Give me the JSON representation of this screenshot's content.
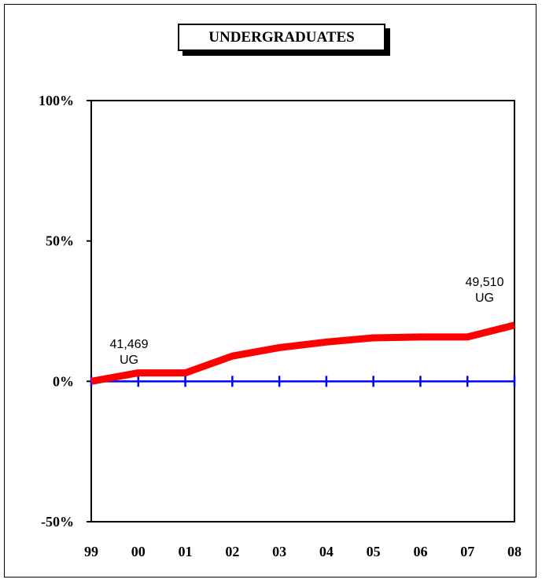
{
  "chart_data": {
    "type": "line",
    "title": "UNDERGRADUATES",
    "categories": [
      "99",
      "00",
      "01",
      "02",
      "03",
      "04",
      "05",
      "06",
      "07",
      "08"
    ],
    "series": [
      {
        "values": [
          0,
          3,
          3,
          9,
          12,
          14,
          15.5,
          15.8,
          15.8,
          20
        ],
        "color": "#ff0000"
      },
      {
        "values": [
          0,
          0,
          0,
          0,
          0,
          0,
          0,
          0,
          0,
          0
        ],
        "color": "#0000ff"
      }
    ],
    "ylim": [
      -50,
      100
    ],
    "yticks": [
      -50,
      0,
      50,
      100
    ],
    "ytick_labels": [
      "-50%",
      "0%",
      "50%",
      "100%"
    ],
    "annotations": [
      {
        "category": "99",
        "lines": [
          "41,469",
          "UG"
        ]
      },
      {
        "category": "08",
        "lines": [
          "49,510",
          "UG"
        ]
      }
    ]
  }
}
